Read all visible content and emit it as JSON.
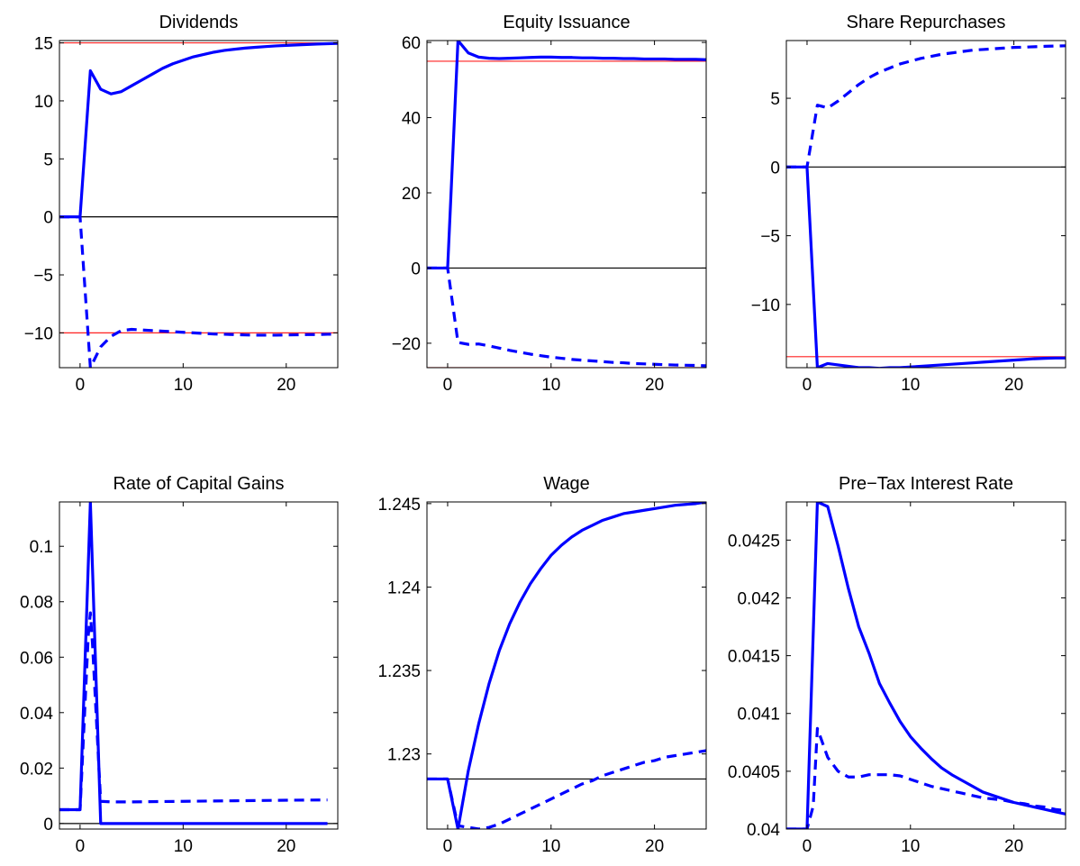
{
  "colors": {
    "series": "#0000ff",
    "zero_line": "#000000",
    "steady_state_line": "#ff2020"
  },
  "chart_data": [
    {
      "type": "line",
      "title": "Dividends",
      "xlabel": "",
      "ylabel": "",
      "xlim": [
        -2,
        25
      ],
      "ylim": [
        -13,
        15.2
      ],
      "xticks": [
        0,
        10,
        20
      ],
      "yticks": [
        -10,
        -5,
        0,
        5,
        10,
        15
      ],
      "grid": false,
      "hlines": [
        {
          "y": 0,
          "color": "#000000"
        },
        {
          "y": 15,
          "color": "#ff2020"
        },
        {
          "y": -10,
          "color": "#ff2020"
        }
      ],
      "series": [
        {
          "style": "solid",
          "x": [
            -2,
            -1,
            0,
            1,
            2,
            3,
            4,
            5,
            6,
            7,
            8,
            9,
            10,
            11,
            12,
            13,
            14,
            15,
            16,
            17,
            18,
            19,
            20,
            21,
            22,
            23,
            24,
            25
          ],
          "y": [
            0,
            0,
            0,
            12.6,
            11.0,
            10.6,
            10.8,
            11.3,
            11.8,
            12.3,
            12.8,
            13.2,
            13.5,
            13.8,
            14.0,
            14.2,
            14.35,
            14.45,
            14.55,
            14.62,
            14.68,
            14.74,
            14.78,
            14.82,
            14.86,
            14.9,
            14.93,
            14.96
          ]
        },
        {
          "style": "dashed",
          "x": [
            -2,
            -1,
            0,
            1,
            2,
            3,
            4,
            5,
            6,
            7,
            8,
            9,
            10,
            11,
            12,
            13,
            14,
            15,
            16,
            17,
            18,
            19,
            20,
            21,
            22,
            23,
            24,
            25
          ],
          "y": [
            0,
            0,
            0,
            -13,
            -11.2,
            -10.3,
            -9.8,
            -9.7,
            -9.75,
            -9.8,
            -9.85,
            -9.9,
            -9.95,
            -10.0,
            -10.05,
            -10.1,
            -10.12,
            -10.15,
            -10.18,
            -10.2,
            -10.2,
            -10.2,
            -10.18,
            -10.17,
            -10.15,
            -10.14,
            -10.12,
            -10.1
          ]
        }
      ]
    },
    {
      "type": "line",
      "title": "Equity Issuance",
      "xlabel": "",
      "ylabel": "",
      "xlim": [
        -2,
        25
      ],
      "ylim": [
        -26.5,
        60.5
      ],
      "xticks": [
        0,
        10,
        20
      ],
      "yticks": [
        -20,
        0,
        20,
        40,
        60
      ],
      "grid": false,
      "hlines": [
        {
          "y": 0,
          "color": "#000000"
        },
        {
          "y": 55,
          "color": "#ff2020"
        },
        {
          "y": -26.5,
          "color": "#ff2020"
        }
      ],
      "series": [
        {
          "style": "solid",
          "x": [
            -2,
            -1,
            0,
            1,
            2,
            3,
            4,
            5,
            6,
            7,
            8,
            9,
            10,
            11,
            12,
            13,
            14,
            15,
            16,
            17,
            18,
            19,
            20,
            21,
            22,
            23,
            24,
            25
          ],
          "y": [
            0,
            0,
            0,
            60.5,
            57.2,
            56.1,
            55.8,
            55.7,
            55.8,
            55.9,
            56.0,
            56.1,
            56.1,
            56.0,
            56.0,
            55.9,
            55.9,
            55.8,
            55.8,
            55.7,
            55.7,
            55.6,
            55.6,
            55.6,
            55.5,
            55.5,
            55.5,
            55.4
          ]
        },
        {
          "style": "dashed",
          "x": [
            -2,
            -1,
            0,
            1,
            2,
            3,
            4,
            5,
            6,
            7,
            8,
            9,
            10,
            11,
            12,
            13,
            14,
            15,
            16,
            17,
            18,
            19,
            20,
            21,
            22,
            23,
            24,
            25
          ],
          "y": [
            0,
            0,
            0,
            -19.8,
            -20.3,
            -20.2,
            -20.7,
            -21.3,
            -21.9,
            -22.4,
            -22.9,
            -23.3,
            -23.7,
            -24.0,
            -24.3,
            -24.5,
            -24.7,
            -24.9,
            -25.1,
            -25.2,
            -25.4,
            -25.5,
            -25.6,
            -25.7,
            -25.8,
            -25.85,
            -25.9,
            -26.0
          ]
        }
      ]
    },
    {
      "type": "line",
      "title": "Share Repurchases",
      "xlabel": "",
      "ylabel": "",
      "xlim": [
        -2,
        25
      ],
      "ylim": [
        -14.6,
        9.2
      ],
      "xticks": [
        0,
        10,
        20
      ],
      "yticks": [
        -10,
        -5,
        0,
        5
      ],
      "grid": false,
      "hlines": [
        {
          "y": 0,
          "color": "#000000"
        },
        {
          "y": -13.8,
          "color": "#ff2020"
        }
      ],
      "series": [
        {
          "style": "solid",
          "x": [
            -2,
            -1,
            0,
            1,
            2,
            3,
            4,
            5,
            6,
            7,
            8,
            9,
            10,
            11,
            12,
            13,
            14,
            15,
            16,
            17,
            18,
            19,
            20,
            21,
            22,
            23,
            24,
            25
          ],
          "y": [
            0,
            0,
            0,
            -14.6,
            -14.3,
            -14.4,
            -14.5,
            -14.6,
            -14.6,
            -14.65,
            -14.6,
            -14.6,
            -14.55,
            -14.5,
            -14.45,
            -14.4,
            -14.35,
            -14.3,
            -14.25,
            -14.2,
            -14.15,
            -14.1,
            -14.05,
            -14.0,
            -13.95,
            -13.92,
            -13.9,
            -13.9
          ]
        },
        {
          "style": "dashed",
          "x": [
            -2,
            -1,
            0,
            1,
            2,
            3,
            4,
            5,
            6,
            7,
            8,
            9,
            10,
            11,
            12,
            13,
            14,
            15,
            16,
            17,
            18,
            19,
            20,
            21,
            22,
            23,
            24,
            25
          ],
          "y": [
            0,
            0,
            0,
            4.5,
            4.3,
            4.8,
            5.4,
            6.0,
            6.5,
            6.9,
            7.2,
            7.5,
            7.7,
            7.9,
            8.05,
            8.2,
            8.3,
            8.4,
            8.5,
            8.55,
            8.6,
            8.65,
            8.7,
            8.72,
            8.75,
            8.78,
            8.8,
            8.82
          ]
        }
      ]
    },
    {
      "type": "line",
      "title": "Rate of Capital Gains",
      "xlabel": "",
      "ylabel": "",
      "xlim": [
        -2,
        25
      ],
      "ylim": [
        -0.002,
        0.116
      ],
      "xticks": [
        0,
        10,
        20
      ],
      "yticks": [
        0,
        0.02,
        0.04,
        0.06,
        0.08,
        0.1
      ],
      "grid": false,
      "hlines": [
        {
          "y": 0,
          "color": "#000000"
        }
      ],
      "series": [
        {
          "style": "solid",
          "x": [
            -2,
            -1,
            0,
            1,
            2,
            3,
            5,
            10,
            15,
            20,
            24
          ],
          "y": [
            0.005,
            0.005,
            0.005,
            0.116,
            0,
            0,
            0,
            0,
            0,
            0,
            0
          ]
        },
        {
          "style": "dashed",
          "x": [
            -2,
            -1,
            0,
            0.8,
            1,
            1.2,
            2,
            3,
            5,
            10,
            15,
            20,
            24
          ],
          "y": [
            0.005,
            0.005,
            0.005,
            0.068,
            0.076,
            0.065,
            0.008,
            0.0078,
            0.0078,
            0.008,
            0.0082,
            0.0084,
            0.0085
          ]
        }
      ]
    },
    {
      "type": "line",
      "title": "Wage",
      "xlabel": "",
      "ylabel": "",
      "xlim": [
        -2,
        25
      ],
      "ylim": [
        1.2255,
        1.2451
      ],
      "xticks": [
        0,
        10,
        20
      ],
      "yticks": [
        1.23,
        1.235,
        1.24,
        1.245
      ],
      "yticklabels": [
        "1.23",
        "1.235",
        "1.24",
        "1.245"
      ],
      "grid": false,
      "hlines": [
        {
          "y": 1.2285,
          "color": "#000000"
        }
      ],
      "series": [
        {
          "style": "solid",
          "x": [
            -2,
            -1,
            0,
            1,
            2,
            3,
            4,
            5,
            6,
            7,
            8,
            9,
            10,
            11,
            12,
            13,
            14,
            15,
            16,
            17,
            18,
            19,
            20,
            21,
            22,
            23,
            24,
            25
          ],
          "y": [
            1.2285,
            1.2285,
            1.2285,
            1.2255,
            1.229,
            1.2318,
            1.2342,
            1.2362,
            1.2378,
            1.2391,
            1.2402,
            1.2411,
            1.2419,
            1.2425,
            1.243,
            1.2434,
            1.2437,
            1.244,
            1.2442,
            1.2444,
            1.2445,
            1.2446,
            1.2447,
            1.2448,
            1.2449,
            1.24495,
            1.245,
            1.2451
          ]
        },
        {
          "style": "dashed",
          "x": [
            -2,
            -1,
            0,
            1,
            2,
            3,
            4,
            5,
            6,
            7,
            8,
            9,
            10,
            11,
            12,
            13,
            14,
            15,
            16,
            17,
            18,
            19,
            20,
            21,
            22,
            23,
            24,
            25
          ],
          "y": [
            1.2285,
            1.2285,
            1.2285,
            1.2257,
            1.2256,
            1.2255,
            1.2256,
            1.2258,
            1.2261,
            1.2264,
            1.2267,
            1.227,
            1.2273,
            1.2276,
            1.2279,
            1.2282,
            1.2284,
            1.2287,
            1.2289,
            1.2291,
            1.2293,
            1.2295,
            1.2296,
            1.2298,
            1.2299,
            1.23,
            1.2301,
            1.2302
          ]
        }
      ]
    },
    {
      "type": "line",
      "title": "Pre−Tax Interest Rate",
      "xlabel": "",
      "ylabel": "",
      "xlim": [
        -2,
        25
      ],
      "ylim": [
        0.04,
        0.04283
      ],
      "xticks": [
        0,
        10,
        20
      ],
      "yticks": [
        0.04,
        0.0405,
        0.041,
        0.0415,
        0.042,
        0.0425
      ],
      "yticklabels": [
        "0.04",
        "0.0405",
        "0.041",
        "0.0415",
        "0.042",
        "0.0425"
      ],
      "grid": false,
      "hlines": [],
      "series": [
        {
          "style": "solid",
          "x": [
            -2,
            -1,
            0,
            1,
            2,
            3,
            4,
            5,
            6,
            7,
            8,
            9,
            10,
            11,
            12,
            13,
            14,
            15,
            16,
            17,
            18,
            19,
            20,
            21,
            22,
            23,
            24,
            25
          ],
          "y": [
            0.04,
            0.04,
            0.04,
            0.04283,
            0.04279,
            0.04245,
            0.04208,
            0.04175,
            0.04152,
            0.04126,
            0.04109,
            0.04093,
            0.0408,
            0.0407,
            0.04061,
            0.04053,
            0.04047,
            0.04042,
            0.04037,
            0.04032,
            0.04029,
            0.04026,
            0.04023,
            0.04021,
            0.04019,
            0.04017,
            0.04015,
            0.04013
          ]
        },
        {
          "style": "dashed",
          "x": [
            -2,
            -1,
            0,
            0.6,
            1,
            2,
            3,
            4,
            5,
            6,
            7,
            8,
            9,
            10,
            11,
            12,
            13,
            14,
            15,
            16,
            17,
            18,
            19,
            20,
            21,
            22,
            23,
            24,
            25
          ],
          "y": [
            0.04,
            0.04,
            0.04,
            0.0402,
            0.04087,
            0.04062,
            0.0405,
            0.04045,
            0.04045,
            0.04047,
            0.04047,
            0.04047,
            0.04046,
            0.04043,
            0.0404,
            0.04037,
            0.04035,
            0.04033,
            0.04031,
            0.04029,
            0.04027,
            0.04026,
            0.04025,
            0.04023,
            0.04022,
            0.0402,
            0.04019,
            0.04017,
            0.04016
          ]
        }
      ]
    }
  ]
}
